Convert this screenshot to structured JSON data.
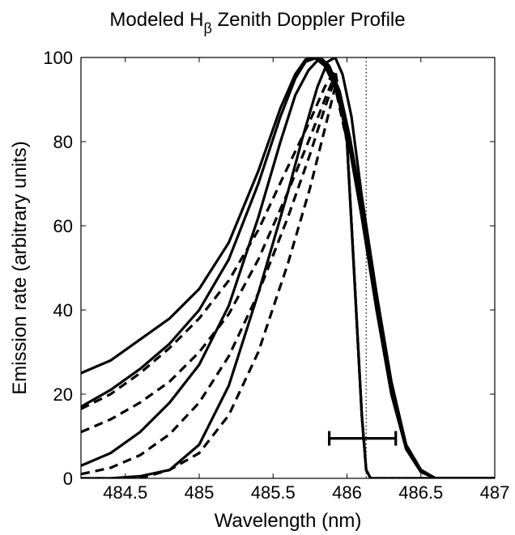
{
  "chart_data": {
    "type": "line",
    "title": {
      "prefix": "Modeled H",
      "subscript": "β",
      "suffix": " Zenith Doppler Profile"
    },
    "xlabel": "Wavelength (nm)",
    "ylabel": "Emission rate (arbitrary units)",
    "xlim": [
      484.2,
      487.0
    ],
    "ylim": [
      0,
      100
    ],
    "x_ticks": [
      "484.5",
      "485",
      "485.5",
      "486",
      "486.5",
      "487"
    ],
    "y_ticks": [
      "0",
      "20",
      "40",
      "60",
      "80",
      "100"
    ],
    "grid": false,
    "reference_line": {
      "x": 486.13,
      "style": "dotted"
    },
    "error_bar": {
      "x": [
        485.88,
        486.33
      ],
      "y": 9.5
    },
    "series": [
      {
        "style": "solid",
        "x": [
          484.2,
          484.4,
          484.6,
          484.8,
          485.0,
          485.2,
          485.4,
          485.55,
          485.65,
          485.72,
          485.78,
          485.85,
          485.92,
          486.0,
          486.1,
          486.2,
          486.3,
          486.4,
          486.5,
          486.6,
          487.0
        ],
        "y": [
          25,
          28,
          33,
          38,
          45,
          56,
          73,
          88,
          96,
          99.5,
          100,
          98,
          93,
          82,
          62,
          40,
          20,
          7,
          1.5,
          0,
          0
        ]
      },
      {
        "style": "solid",
        "x": [
          484.2,
          484.4,
          484.6,
          484.8,
          485.0,
          485.2,
          485.4,
          485.55,
          485.65,
          485.72,
          485.8,
          485.87,
          485.94,
          486.0,
          486.1,
          486.2,
          486.3,
          486.4,
          486.5,
          486.6,
          487.0
        ],
        "y": [
          17,
          21,
          26,
          32,
          40,
          52,
          70,
          86,
          95,
          99,
          100,
          98,
          92,
          84,
          64,
          42,
          21,
          7,
          1.5,
          0,
          0
        ]
      },
      {
        "style": "solid",
        "x": [
          484.2,
          484.4,
          484.6,
          484.8,
          485.0,
          485.2,
          485.4,
          485.55,
          485.65,
          485.74,
          485.82,
          485.88,
          485.95,
          486.02,
          486.1,
          486.2,
          486.3,
          486.4,
          486.5,
          486.6,
          487.0
        ],
        "y": [
          3,
          6,
          11,
          18,
          27,
          41,
          62,
          80,
          91,
          97,
          100,
          98,
          92,
          81,
          65,
          43,
          22,
          8,
          2,
          0,
          0
        ]
      },
      {
        "style": "solid",
        "x": [
          484.2,
          484.4,
          484.6,
          484.8,
          485.0,
          485.2,
          485.4,
          485.5,
          485.6,
          485.7,
          485.8,
          485.87,
          485.92,
          485.97,
          486.03,
          486.1,
          486.2,
          486.3,
          486.4,
          486.5,
          486.6,
          487.0
        ],
        "y": [
          0,
          0,
          0.5,
          2,
          8,
          22,
          44,
          56,
          68,
          81,
          93,
          99,
          100,
          96,
          86,
          67,
          44,
          23,
          8,
          2,
          0,
          0
        ]
      },
      {
        "style": "dashed",
        "x": [
          484.2,
          484.4,
          484.6,
          484.8,
          485.0,
          485.2,
          485.4,
          485.6,
          485.75,
          485.85,
          485.92,
          486.0,
          486.05,
          486.1,
          486.13,
          486.16,
          487.0
        ],
        "y": [
          16.5,
          20,
          25,
          31,
          38,
          47,
          59,
          74,
          85,
          93,
          97,
          80,
          48,
          15,
          2,
          0,
          0
        ]
      },
      {
        "style": "dashed",
        "x": [
          484.2,
          484.4,
          484.6,
          484.8,
          485.0,
          485.2,
          485.4,
          485.6,
          485.75,
          485.85,
          485.92,
          486.0,
          486.05,
          486.1,
          486.13,
          486.16,
          487.0
        ],
        "y": [
          11,
          14,
          18,
          23,
          30,
          39,
          52,
          68,
          81,
          90,
          96,
          80,
          48,
          15,
          2,
          0,
          0
        ]
      },
      {
        "style": "dashed",
        "x": [
          484.2,
          484.4,
          484.6,
          484.8,
          485.0,
          485.2,
          485.4,
          485.6,
          485.75,
          485.85,
          485.92,
          486.0,
          486.05,
          486.1,
          486.13,
          486.16,
          487.0
        ],
        "y": [
          1,
          2.5,
          5.5,
          10.5,
          18,
          29,
          44,
          62,
          77,
          88,
          95,
          80,
          48,
          15,
          2,
          0,
          0
        ]
      },
      {
        "style": "dashed",
        "x": [
          484.2,
          484.6,
          484.8,
          485.0,
          485.2,
          485.4,
          485.6,
          485.75,
          485.85,
          485.92,
          486.0,
          486.05,
          486.1,
          486.13,
          486.16,
          487.0
        ],
        "y": [
          0,
          0,
          2,
          6,
          15,
          30,
          51,
          69,
          83,
          93,
          80,
          48,
          15,
          2,
          0,
          0
        ]
      }
    ]
  }
}
